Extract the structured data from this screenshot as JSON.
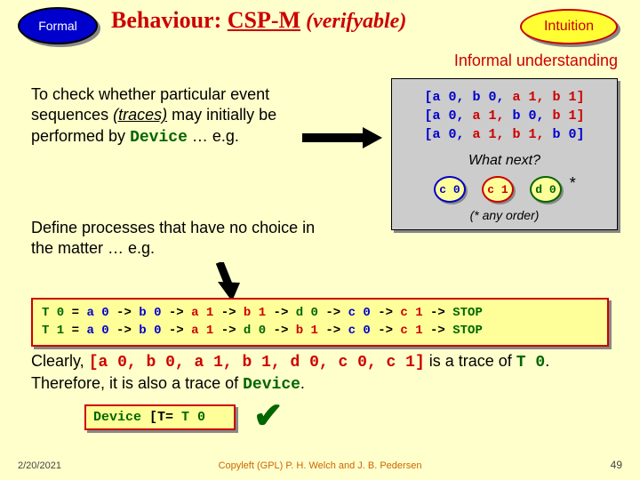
{
  "formal_label": "Formal",
  "title_behaviour": "Behaviour: ",
  "title_csp": "CSP-M",
  "title_verif": " (verifyable)",
  "intuition_label": "Intuition",
  "informal": "Informal understanding",
  "para1_a": "To check whether particular event sequences ",
  "para1_traces": "(traces)",
  "para1_b": " may initially be performed by ",
  "para1_device": "Device",
  "para1_c": " … e.g.",
  "tracebox": {
    "lines": [
      {
        "parts": [
          {
            "t": "[a 0,",
            "c": 0
          },
          {
            "t": " b 0,",
            "c": 0
          },
          {
            "t": " a 1,",
            "c": 1
          },
          {
            "t": " b 1]",
            "c": 1
          }
        ]
      },
      {
        "parts": [
          {
            "t": "[a 0,",
            "c": 0
          },
          {
            "t": " a 1,",
            "c": 1
          },
          {
            "t": " b 0,",
            "c": 0
          },
          {
            "t": " b 1]",
            "c": 1
          }
        ]
      },
      {
        "parts": [
          {
            "t": "[a 0,",
            "c": 0
          },
          {
            "t": " a 1,",
            "c": 1
          },
          {
            "t": " b 1,",
            "c": 1
          },
          {
            "t": " b 0]",
            "c": 0
          }
        ]
      }
    ],
    "whatnext": "What next?",
    "c0": "c 0",
    "c1": "c 1",
    "d0": "d 0",
    "star": "*",
    "anyorder": "(* any order)"
  },
  "para2": "Define processes that have no choice in the matter … e.g.",
  "code": {
    "l1": {
      "t0": "T 0",
      "eq": " = ",
      "a0": "a 0",
      "b0": "b 0",
      "a1": "a 1",
      "b1": "b 1",
      "d0": "d 0",
      "c0": "c 0",
      "c1": "c 1",
      "stop": "STOP",
      "arr": " -> "
    },
    "l2": {
      "t1": "T 1",
      "eq": " = ",
      "a0": "a 0",
      "b0": "b 0",
      "a1": "a 1",
      "d0": "d 0",
      "b1": "b 1",
      "c0": "c 0",
      "c1": "c 1",
      "stop": "STOP",
      "arr": " -> "
    }
  },
  "para3_a": "Clearly, ",
  "para3_trace": "[a 0, b 0, a 1, b 1, d 0, c 0, c 1]",
  "para3_b": " is a trace of ",
  "para3_t0": "T 0",
  "para3_c": ". ",
  "para3_d": "Therefore, it is also a trace of ",
  "para3_device": "Device",
  "para3_e": ".",
  "refbox_device": "Device",
  "refbox_op": " [T= ",
  "refbox_t0": "T 0",
  "check": "✔",
  "date": "2/20/2021",
  "copyleft": "Copyleft (GPL) P. H. Welch and J. B. Pedersen",
  "slidenum": "49"
}
